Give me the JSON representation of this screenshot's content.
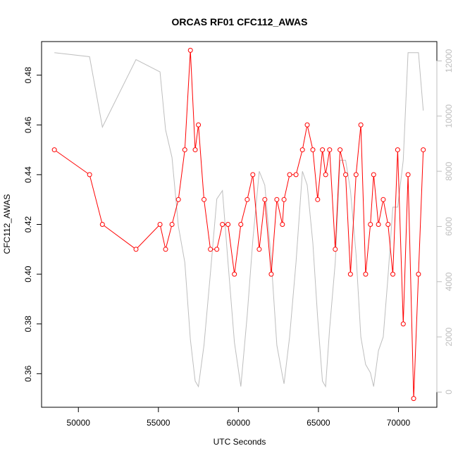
{
  "chart_data": {
    "type": "line",
    "title": "ORCAS RF01 CFC112_AWAS",
    "xlabel": "UTC Seconds",
    "ylabel": "CFC112_AWAS",
    "xlim": [
      47700,
      72400
    ],
    "ylim": [
      0.3465,
      0.4935
    ],
    "y2lim": [
      -550,
      12700
    ],
    "x_ticks": [
      50000,
      55000,
      60000,
      65000,
      70000
    ],
    "y_ticks": [
      0.36,
      0.38,
      0.4,
      0.42,
      0.44,
      0.46,
      0.48
    ],
    "y_tick_labels": [
      "0.36",
      "0.38",
      "0.40",
      "0.42",
      "0.44",
      "0.46",
      "0.48"
    ],
    "y2_ticks": [
      0,
      2000,
      4000,
      6000,
      8000,
      10000,
      12000
    ],
    "grid": false,
    "series": [
      {
        "axis": "left",
        "color": "#ff0000",
        "marker": "open-circle",
        "x": [
          48500,
          50700,
          51500,
          53600,
          55100,
          55450,
          55850,
          56250,
          56650,
          57000,
          57300,
          57500,
          57850,
          58250,
          58650,
          59000,
          59350,
          59750,
          60150,
          60550,
          60900,
          61300,
          61650,
          62050,
          62400,
          62750,
          62850,
          63200,
          63600,
          64000,
          64300,
          64650,
          64950,
          65250,
          65450,
          65700,
          66050,
          66350,
          66700,
          67000,
          67350,
          67650,
          67950,
          68250,
          68450,
          68750,
          69050,
          69350,
          69650,
          69950,
          70300,
          70600,
          70950,
          71250,
          71550
        ],
        "values": [
          0.45,
          0.44,
          0.42,
          0.41,
          0.42,
          0.41,
          0.42,
          0.43,
          0.45,
          0.49,
          0.45,
          0.46,
          0.43,
          0.41,
          0.41,
          0.42,
          0.42,
          0.4,
          0.42,
          0.43,
          0.44,
          0.41,
          0.43,
          0.4,
          0.43,
          0.42,
          0.43,
          0.44,
          0.44,
          0.45,
          0.46,
          0.45,
          0.43,
          0.45,
          0.44,
          0.45,
          0.41,
          0.45,
          0.44,
          0.4,
          0.44,
          0.46,
          0.4,
          0.42,
          0.44,
          0.42,
          0.43,
          0.42,
          0.4,
          0.45,
          0.38,
          0.44,
          0.35,
          0.4,
          0.45
        ]
      },
      {
        "axis": "right",
        "color": "#bebebe",
        "marker": "none",
        "x": [
          48500,
          50700,
          51500,
          53600,
          55100,
          55450,
          55850,
          56250,
          56650,
          57000,
          57300,
          57500,
          57850,
          58250,
          58650,
          59000,
          59350,
          59750,
          60150,
          60550,
          60900,
          61300,
          61650,
          62050,
          62400,
          62750,
          62850,
          63200,
          63600,
          64000,
          64300,
          64650,
          64950,
          65250,
          65450,
          65700,
          66050,
          66350,
          66700,
          67000,
          67350,
          67650,
          67950,
          68250,
          68450,
          68750,
          69050,
          69350,
          69650,
          69950,
          70300,
          70600,
          70950,
          71250,
          71550
        ],
        "values": [
          12300,
          12150,
          9600,
          12050,
          11600,
          9500,
          8500,
          6000,
          4700,
          1900,
          400,
          200,
          1700,
          4300,
          7000,
          7300,
          4700,
          1800,
          200,
          2800,
          5500,
          8000,
          7500,
          4800,
          1700,
          600,
          300,
          2000,
          4700,
          8000,
          7500,
          5400,
          2700,
          400,
          200,
          2300,
          4700,
          8400,
          8400,
          7300,
          5000,
          2000,
          1000,
          700,
          200,
          1500,
          2000,
          4200,
          6700,
          6700,
          8400,
          12300,
          12300,
          12300,
          10200
        ]
      }
    ]
  }
}
